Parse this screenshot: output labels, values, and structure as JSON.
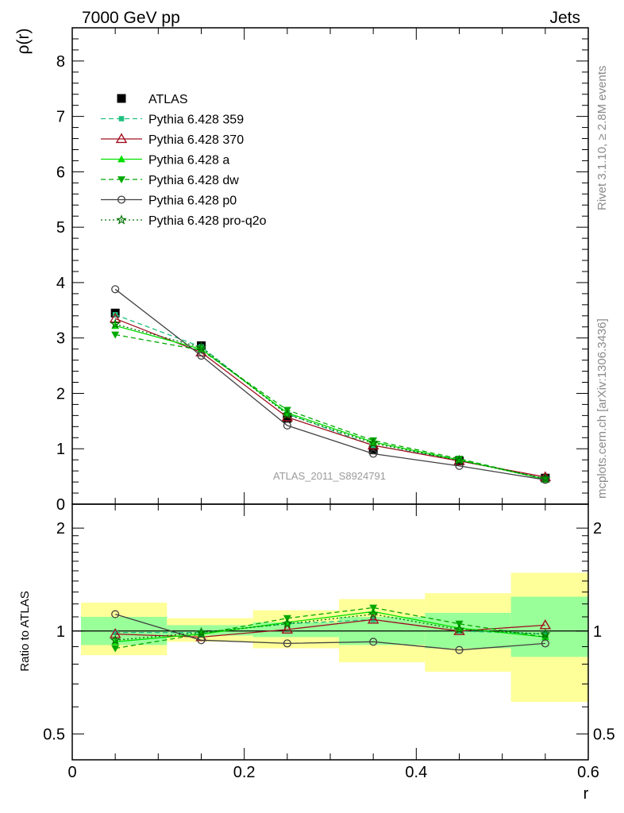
{
  "header": {
    "left": "7000 GeV pp",
    "right": "Jets"
  },
  "side_texts": {
    "rivet": "Rivet 3.1.10, ≥ 2.8M events",
    "mcplots": "mcplots.cern.ch [arXiv:1306.3436]"
  },
  "analysis_label": "ATLAS_2011_S8924791",
  "chart_data": [
    {
      "type": "line",
      "panel": "main",
      "ylabel": "ρ(r)",
      "xlabel": "",
      "xlim": [
        0,
        0.6
      ],
      "ylim": [
        0,
        8.6
      ],
      "yticks": [
        0,
        1,
        2,
        3,
        4,
        5,
        6,
        7,
        8
      ],
      "legend_position": "top-left",
      "x": [
        0.05,
        0.15,
        0.25,
        0.35,
        0.45,
        0.55
      ],
      "series": [
        {
          "name": "ATLAS",
          "color": "#000000",
          "marker": "square",
          "dash": "none",
          "values": [
            3.45,
            2.86,
            1.55,
            0.98,
            0.78,
            0.47
          ]
        },
        {
          "name": "Pythia 6.428 359",
          "color": "#20c080",
          "marker": "small-square",
          "dash": "dashed",
          "values": [
            3.42,
            2.84,
            1.63,
            1.06,
            0.8,
            0.46
          ]
        },
        {
          "name": "Pythia 6.428 370",
          "color": "#a01020",
          "marker": "open-triangle",
          "dash": "none",
          "values": [
            3.35,
            2.74,
            1.57,
            1.06,
            0.78,
            0.49
          ]
        },
        {
          "name": "Pythia 6.428 a",
          "color": "#00e000",
          "marker": "triangle",
          "dash": "none",
          "values": [
            3.22,
            2.8,
            1.65,
            1.12,
            0.8,
            0.45
          ]
        },
        {
          "name": "Pythia 6.428 dw",
          "color": "#00a800",
          "marker": "triangle-down",
          "dash": "dashed",
          "values": [
            3.06,
            2.78,
            1.7,
            1.15,
            0.82,
            0.45
          ]
        },
        {
          "name": "Pythia 6.428 p0",
          "color": "#404040",
          "marker": "open-circle",
          "dash": "none",
          "values": [
            3.88,
            2.68,
            1.42,
            0.91,
            0.69,
            0.44
          ]
        },
        {
          "name": "Pythia 6.428 pro-q2o",
          "color": "#007000",
          "marker": "open-star",
          "dash": "dotted",
          "values": [
            3.25,
            2.83,
            1.62,
            1.1,
            0.79,
            0.46
          ]
        }
      ]
    },
    {
      "type": "line",
      "panel": "ratio",
      "ylabel": "Ratio to ATLAS",
      "xlabel": "r",
      "xlim": [
        0,
        0.6
      ],
      "ylim": [
        0.42,
        2.35
      ],
      "yscale": "log",
      "yticks": [
        0.5,
        1,
        2
      ],
      "xticks": [
        0,
        0.2,
        0.4,
        0.6
      ],
      "x": [
        0.05,
        0.15,
        0.25,
        0.35,
        0.45,
        0.55
      ],
      "bins": [
        [
          0,
          0.1
        ],
        [
          0.1,
          0.2
        ],
        [
          0.2,
          0.3
        ],
        [
          0.3,
          0.4
        ],
        [
          0.4,
          0.5
        ],
        [
          0.5,
          0.6
        ]
      ],
      "band_stat": [
        [
          0.91,
          1.1
        ],
        [
          0.97,
          1.04
        ],
        [
          0.96,
          1.06
        ],
        [
          0.91,
          1.1
        ],
        [
          0.89,
          1.13
        ],
        [
          0.84,
          1.26
        ]
      ],
      "band_total": [
        [
          0.85,
          1.21
        ],
        [
          0.93,
          1.09
        ],
        [
          0.89,
          1.15
        ],
        [
          0.81,
          1.24
        ],
        [
          0.76,
          1.29
        ],
        [
          0.62,
          1.48
        ]
      ],
      "series": [
        {
          "name": "Pythia 6.428 359",
          "color": "#20c080",
          "marker": "small-square",
          "dash": "dashed",
          "values": [
            0.99,
            0.99,
            1.05,
            1.08,
            1.0,
            0.98
          ]
        },
        {
          "name": "Pythia 6.428 370",
          "color": "#a01020",
          "marker": "open-triangle",
          "dash": "none",
          "values": [
            0.98,
            0.96,
            1.01,
            1.08,
            1.0,
            1.04
          ]
        },
        {
          "name": "Pythia 6.428 a",
          "color": "#00e000",
          "marker": "triangle",
          "dash": "none",
          "values": [
            0.93,
            0.98,
            1.06,
            1.14,
            1.02,
            0.96
          ]
        },
        {
          "name": "Pythia 6.428 dw",
          "color": "#00a800",
          "marker": "triangle-down",
          "dash": "dashed",
          "values": [
            0.89,
            0.98,
            1.09,
            1.17,
            1.05,
            0.96
          ]
        },
        {
          "name": "Pythia 6.428 p0",
          "color": "#404040",
          "marker": "open-circle",
          "dash": "none",
          "values": [
            1.12,
            0.94,
            0.92,
            0.93,
            0.88,
            0.92
          ]
        },
        {
          "name": "Pythia 6.428 pro-q2o",
          "color": "#007000",
          "marker": "open-star",
          "dash": "dotted",
          "values": [
            0.94,
            0.99,
            1.05,
            1.12,
            1.01,
            0.98
          ]
        }
      ]
    }
  ]
}
